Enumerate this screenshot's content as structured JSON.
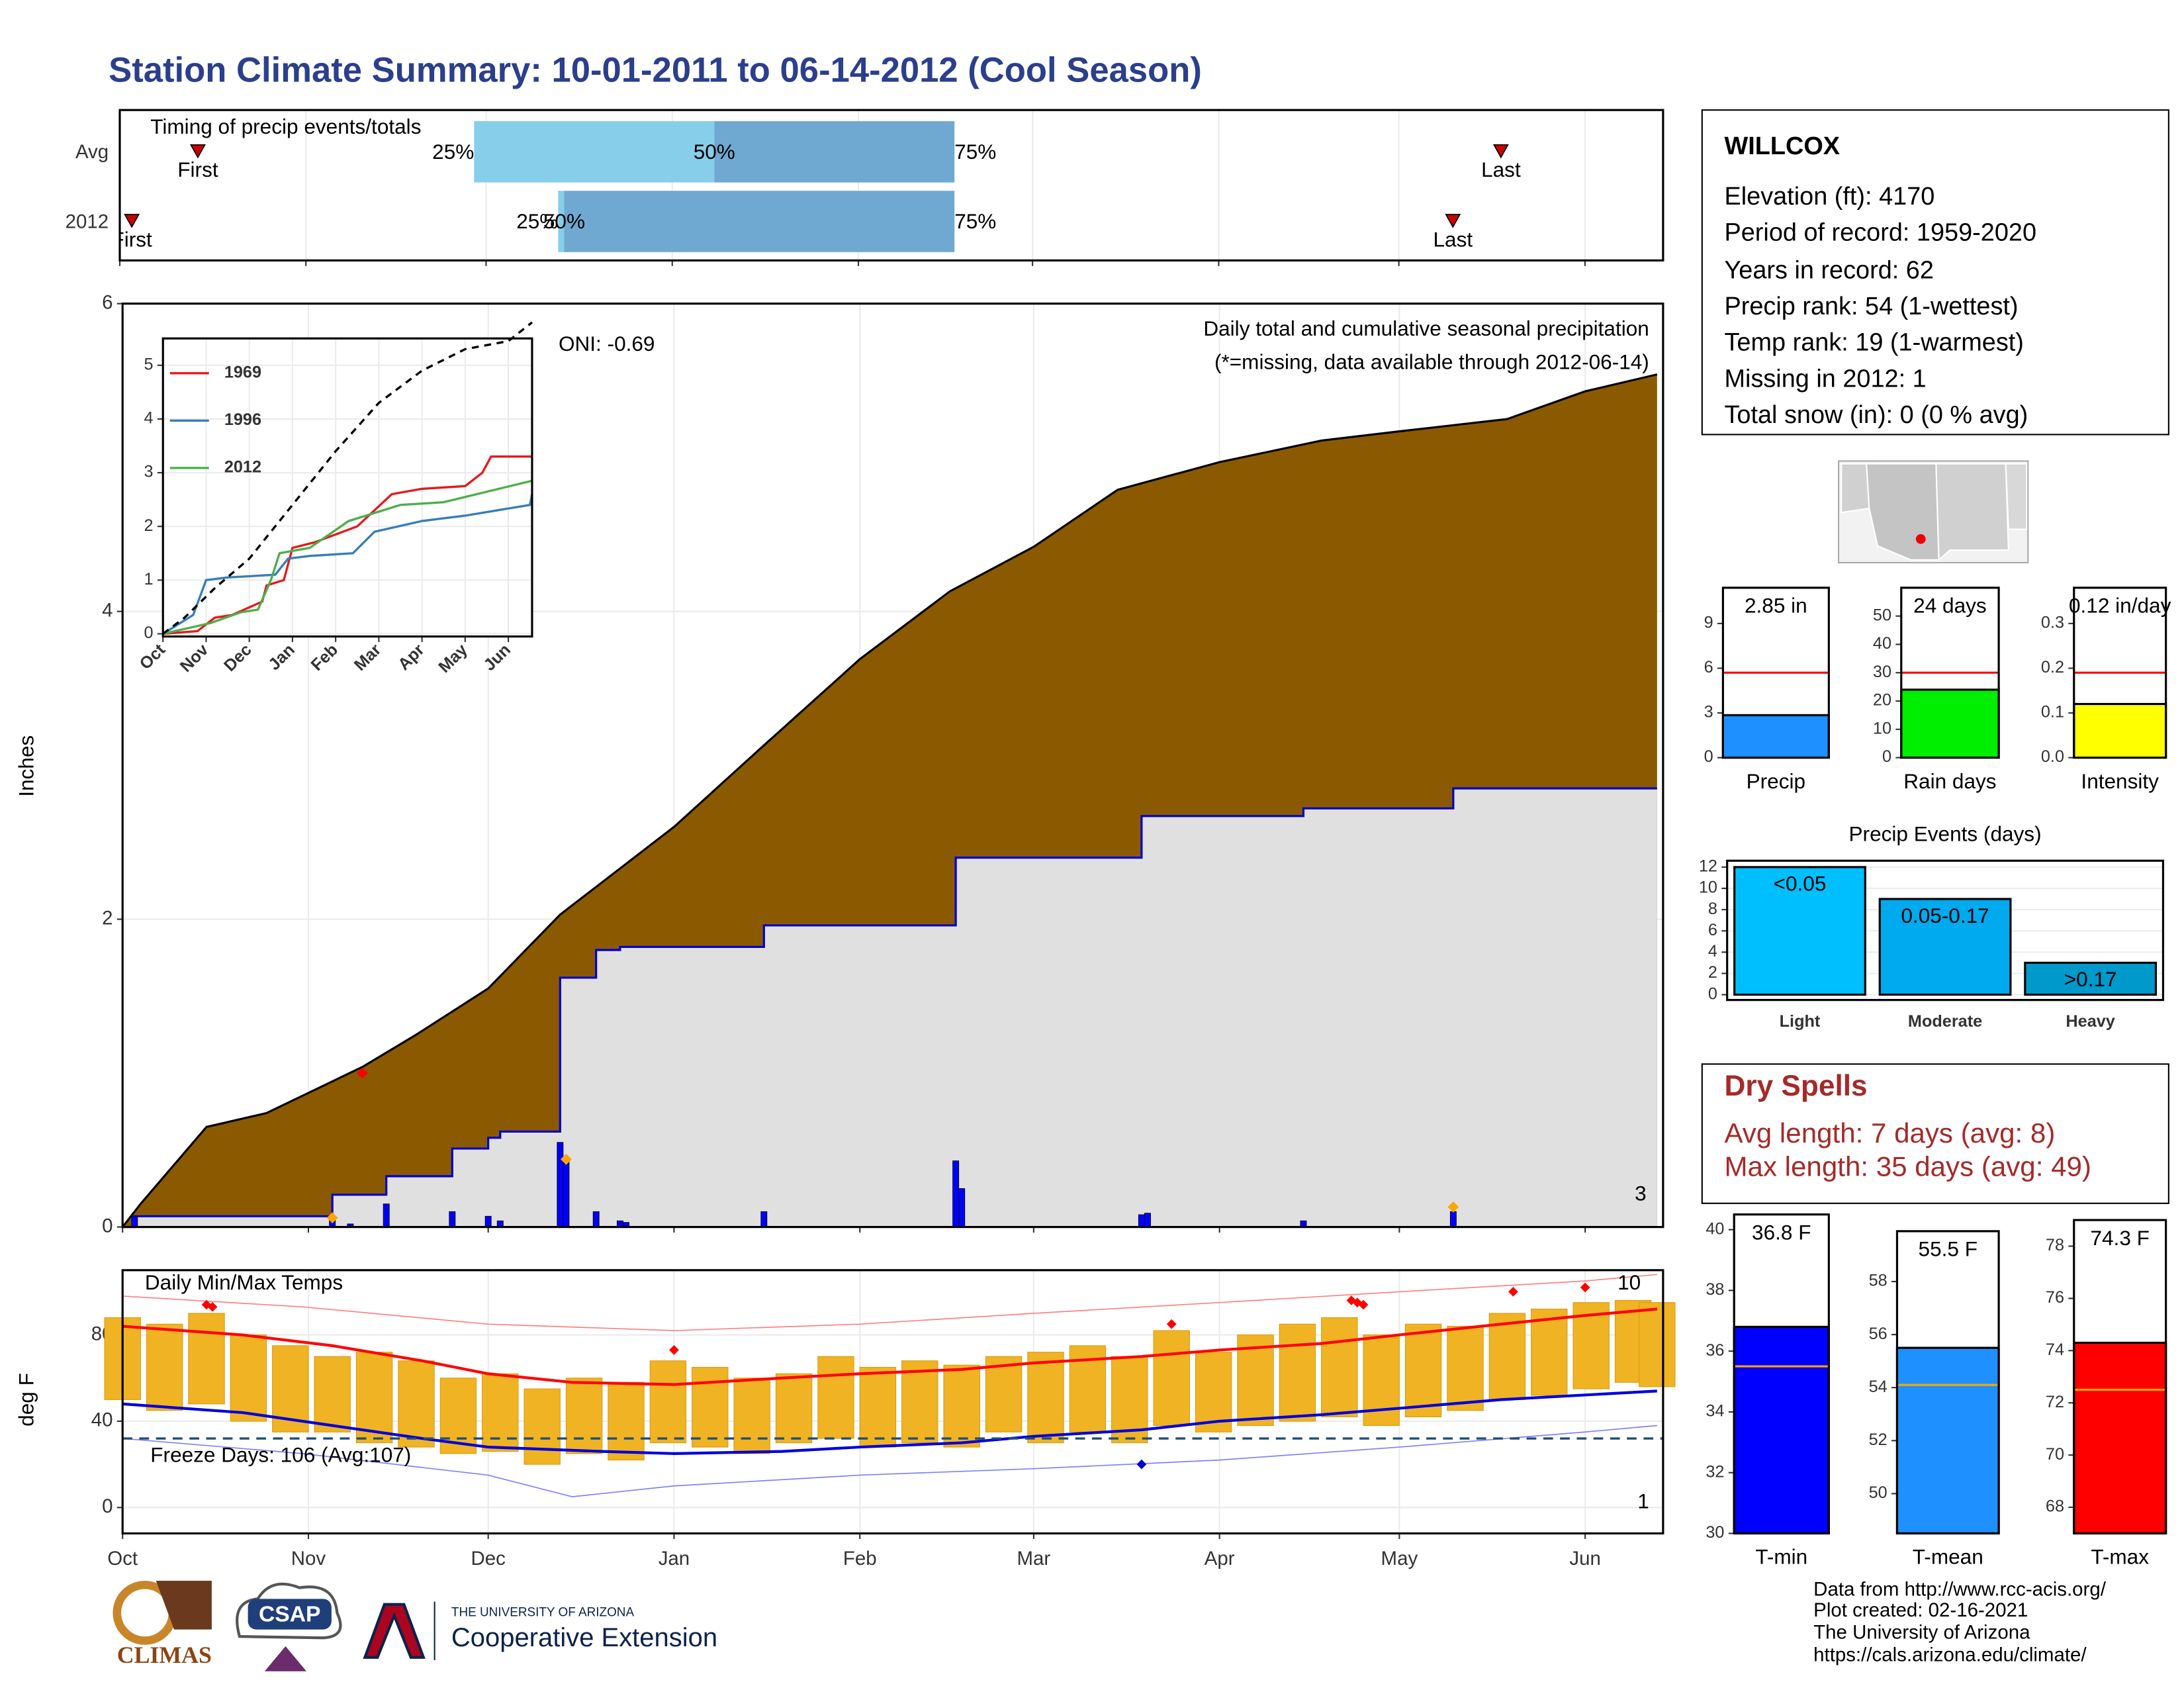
{
  "title": "Station Climate Summary: 10-01-2011 to 06-14-2012 (Cool Season)",
  "station": {
    "name": "WILLCOX",
    "lines": [
      "Elevation (ft): 4170",
      "Period of record: 1959-2020",
      "Years in record: 62",
      "Precip rank: 54 (1-wettest)",
      "Temp rank: 19 (1-warmest)",
      "Missing in 2012: 1",
      "Total snow (in): 0 (0 % avg)"
    ]
  },
  "dry_spells": {
    "title": "Dry Spells",
    "lines": [
      "Avg length: 7 days (avg: 8)",
      "Max length: 35 days (avg: 49)"
    ]
  },
  "footer": {
    "credits": [
      "Data from http://www.rcc-acis.org/",
      "Plot created: 02-16-2021",
      "The University of Arizona",
      "https://cals.arizona.edu/climate/"
    ],
    "logos": {
      "climas": "CLIMAS",
      "csap": "CSAP",
      "ua": "THE UNIVERSITY OF ARIZONA",
      "extension": "Cooperative Extension"
    }
  },
  "chart_data": [
    {
      "type": "timing",
      "title": "Timing of precip events/totals",
      "xlim": [
        0,
        257
      ],
      "xticks": [
        0,
        31,
        61,
        92,
        123,
        152,
        183,
        213,
        244
      ],
      "marker_labels": {
        "first": "First",
        "q25": "25%",
        "q50": "50%",
        "q75": "75%",
        "last": "Last"
      },
      "rows": [
        {
          "name": "Avg",
          "first": 13,
          "q25": 59,
          "q50": 99,
          "q75": 139,
          "last": 230
        },
        {
          "name": "2012",
          "first": 2,
          "q25": 73,
          "q50": 74,
          "q75": 139,
          "last": 222
        }
      ],
      "colors": [
        "#87ceeb",
        "#6fa8d0"
      ],
      "marker_color": "#cc0000"
    },
    {
      "type": "precip",
      "subtitle": "Daily total and cumulative seasonal precipitation",
      "note": "(*=missing, data available through 2012-06-14)",
      "oni": "ONI: -0.69",
      "corner_label": "3",
      "ylabel": "Inches",
      "xlim": [
        0,
        257
      ],
      "ylim": [
        0,
        6
      ],
      "yticks": [
        0,
        2,
        4,
        6
      ],
      "xticks": [
        0,
        31,
        61,
        92,
        123,
        152,
        183,
        213,
        244
      ],
      "grid": true,
      "series": [
        {
          "kind": "area",
          "fill": "#8b5a00",
          "color": "#000000",
          "x": [
            0,
            3,
            14,
            24,
            40,
            49,
            61,
            73,
            92,
            107,
            123,
            138,
            152,
            166,
            183,
            200,
            213,
            231,
            244,
            256
          ],
          "values": [
            0,
            0.15,
            0.65,
            0.74,
            1.04,
            1.25,
            1.55,
            2.03,
            2.6,
            3.13,
            3.69,
            4.13,
            4.42,
            4.79,
            4.97,
            5.11,
            5.17,
            5.25,
            5.43,
            5.54
          ]
        },
        {
          "kind": "area",
          "step": true,
          "fill": "#e0e0e0",
          "color": "#0000cc",
          "x": [
            0,
            2,
            35,
            44,
            55,
            61,
            63,
            73,
            79,
            83,
            107,
            139,
            170,
            197,
            222,
            256
          ],
          "values": [
            0,
            0.07,
            0.21,
            0.33,
            0.51,
            0.58,
            0.62,
            1.62,
            1.8,
            1.82,
            1.96,
            2.4,
            2.67,
            2.72,
            2.85,
            2.85
          ]
        },
        {
          "kind": "bar",
          "color": "#0000ff",
          "x": [
            2,
            35,
            38,
            44,
            55,
            61,
            63,
            73,
            74,
            79,
            83,
            84,
            107,
            139,
            140,
            170,
            171,
            197,
            222
          ],
          "values": [
            0.07,
            0.06,
            0.02,
            0.15,
            0.1,
            0.07,
            0.04,
            0.55,
            0.45,
            0.1,
            0.04,
            0.03,
            0.1,
            0.43,
            0.25,
            0.08,
            0.09,
            0.04,
            0.1
          ]
        },
        {
          "kind": "points",
          "color": "#ffa500",
          "x": [
            35,
            74,
            222
          ],
          "values": [
            0.06,
            0.44,
            0.13
          ]
        },
        {
          "kind": "points",
          "color": "#ff0000",
          "x": [
            40
          ],
          "values": [
            1.0
          ]
        }
      ]
    },
    {
      "type": "line",
      "xlim": [
        0,
        8.55
      ],
      "ylim": [
        -0.05,
        5.5
      ],
      "yticks": [
        0,
        1,
        2,
        3,
        4,
        5
      ],
      "xticks": [
        {
          "value": 0,
          "label": "Oct"
        },
        {
          "value": 1,
          "label": "Nov"
        },
        {
          "value": 2,
          "label": "Dec"
        },
        {
          "value": 3,
          "label": "Jan"
        },
        {
          "value": 4,
          "label": "Feb"
        },
        {
          "value": 5,
          "label": "Mar"
        },
        {
          "value": 6,
          "label": "Apr"
        },
        {
          "value": 7,
          "label": "May"
        },
        {
          "value": 8,
          "label": "Jun"
        }
      ],
      "legend": "top-left",
      "series": [
        {
          "name": "1969",
          "color": "#e41a1c",
          "x": [
            0,
            0.8,
            1.2,
            1.6,
            2.3,
            2.4,
            2.8,
            3.0,
            3.5,
            4.5,
            5.3,
            6.0,
            7.0,
            7.4,
            7.6,
            8.55
          ],
          "values": [
            0,
            0.05,
            0.3,
            0.35,
            0.6,
            0.9,
            1.0,
            1.6,
            1.7,
            2.0,
            2.6,
            2.7,
            2.75,
            3.0,
            3.3,
            3.3
          ]
        },
        {
          "name": "1996",
          "color": "#377eb8",
          "x": [
            0,
            0.7,
            1.0,
            1.5,
            2.6,
            2.9,
            3.4,
            4.4,
            4.9,
            6.0,
            7.0,
            8.5,
            8.55
          ],
          "values": [
            0,
            0.35,
            1.0,
            1.05,
            1.1,
            1.4,
            1.45,
            1.5,
            1.9,
            2.1,
            2.2,
            2.4,
            2.6
          ]
        },
        {
          "name": "2012",
          "color": "#4daf4a",
          "x": [
            0,
            1.1,
            1.8,
            2.2,
            2.5,
            2.7,
            3.4,
            4.3,
            5.5,
            6.5,
            8.55
          ],
          "values": [
            0,
            0.2,
            0.4,
            0.45,
            1.0,
            1.5,
            1.6,
            2.1,
            2.4,
            2.45,
            2.85
          ]
        },
        {
          "color": "#000000",
          "dash": true,
          "x": [
            0,
            0.5,
            1.2,
            2.0,
            3.0,
            4.0,
            5.0,
            6.0,
            7.0,
            8.0,
            8.55
          ],
          "values": [
            0,
            0.3,
            0.85,
            1.4,
            2.4,
            3.4,
            4.3,
            4.9,
            5.3,
            5.45,
            5.8
          ]
        }
      ]
    },
    {
      "type": "temps",
      "title": "Daily Min/Max Temps",
      "ylabel": "deg F",
      "xlim": [
        0,
        257
      ],
      "ylim": [
        -12,
        110
      ],
      "yticks": [
        0,
        40,
        80
      ],
      "xticks": [
        {
          "value": 0,
          "label": "Oct"
        },
        {
          "value": 31,
          "label": "Nov"
        },
        {
          "value": 61,
          "label": "Dec"
        },
        {
          "value": 92,
          "label": "Jan"
        },
        {
          "value": 123,
          "label": "Feb"
        },
        {
          "value": 152,
          "label": "Mar"
        },
        {
          "value": 183,
          "label": "Apr"
        },
        {
          "value": 213,
          "label": "May"
        },
        {
          "value": 244,
          "label": "Jun"
        }
      ],
      "freeze": {
        "value": 32,
        "label": "Freeze Days: 106 (Avg:107)",
        "color": "#1f4e79"
      },
      "corner_labels": [
        {
          "text": "10",
          "color": "#ff0000"
        },
        {
          "text": "1",
          "color": "#0000cc"
        }
      ],
      "series": [
        {
          "kind": "range",
          "color": "#f0b323",
          "x": [
            0,
            7,
            14,
            21,
            28,
            35,
            42,
            49,
            56,
            63,
            70,
            77,
            84,
            91,
            98,
            105,
            112,
            119,
            126,
            133,
            140,
            147,
            154,
            161,
            168,
            175,
            182,
            189,
            196,
            203,
            210,
            217,
            224,
            231,
            238,
            245,
            252,
            256
          ],
          "high": [
            88,
            85,
            90,
            80,
            75,
            70,
            72,
            68,
            60,
            62,
            55,
            60,
            58,
            68,
            65,
            60,
            62,
            70,
            65,
            68,
            66,
            70,
            72,
            75,
            70,
            82,
            72,
            80,
            85,
            88,
            80,
            85,
            84,
            90,
            92,
            95,
            96,
            95
          ],
          "low": [
            50,
            45,
            48,
            40,
            35,
            35,
            30,
            28,
            25,
            26,
            20,
            25,
            22,
            30,
            28,
            25,
            30,
            32,
            28,
            30,
            28,
            35,
            30,
            35,
            30,
            38,
            35,
            38,
            40,
            42,
            38,
            42,
            45,
            50,
            52,
            55,
            58,
            56
          ]
        },
        {
          "kind": "line",
          "color": "#ff8080",
          "width": 0.8,
          "x": [
            0,
            30,
            61,
            92,
            123,
            152,
            183,
            213,
            244,
            256
          ],
          "values": [
            98,
            93,
            85,
            82,
            85,
            90,
            95,
            100,
            105,
            108
          ]
        },
        {
          "kind": "line",
          "color": "#8080ff",
          "width": 0.8,
          "x": [
            0,
            30,
            61,
            75,
            92,
            123,
            152,
            183,
            213,
            244,
            256
          ],
          "values": [
            32,
            25,
            15,
            5,
            10,
            15,
            18,
            22,
            28,
            35,
            38
          ]
        },
        {
          "kind": "line",
          "color": "#ff0000",
          "width": 2,
          "x": [
            0,
            20,
            35,
            50,
            61,
            75,
            92,
            110,
            123,
            140,
            152,
            170,
            183,
            200,
            213,
            230,
            244,
            256
          ],
          "values": [
            84,
            80,
            75,
            68,
            62,
            58,
            57,
            60,
            62,
            64,
            67,
            70,
            73,
            76,
            80,
            85,
            89,
            92
          ]
        },
        {
          "kind": "line",
          "color": "#0000dd",
          "width": 2,
          "x": [
            0,
            20,
            35,
            50,
            61,
            80,
            92,
            110,
            123,
            140,
            152,
            170,
            183,
            200,
            213,
            230,
            256
          ],
          "values": [
            48,
            44,
            38,
            32,
            28,
            26,
            25,
            26,
            28,
            30,
            33,
            36,
            40,
            43,
            46,
            50,
            54
          ]
        },
        {
          "kind": "points",
          "color": "#ff0000",
          "x": [
            14,
            15,
            92,
            175,
            205,
            206,
            207,
            232,
            244
          ],
          "values": [
            94,
            93,
            73,
            85,
            96,
            95,
            94,
            100,
            102
          ]
        },
        {
          "kind": "points",
          "color": "#0000cc",
          "x": [
            170
          ],
          "values": [
            20
          ]
        }
      ]
    },
    {
      "type": "bar",
      "categories": [
        "Precip"
      ],
      "values": [
        2.85
      ],
      "value_labels": [
        "2.85 in"
      ],
      "color": "#1e90ff",
      "average": 5.7,
      "average_color": "#ff0000",
      "ylim": [
        0,
        11.4
      ],
      "yticks": [
        0,
        3,
        6,
        9
      ]
    },
    {
      "type": "bar",
      "categories": [
        "Rain days"
      ],
      "values": [
        24
      ],
      "value_labels": [
        "24 days"
      ],
      "color": "#00ee00",
      "average": 30,
      "average_color": "#ff0000",
      "ylim": [
        0,
        60
      ],
      "yticks": [
        0,
        10,
        20,
        30,
        40,
        50
      ]
    },
    {
      "type": "bar",
      "categories": [
        "Intensity"
      ],
      "values": [
        0.12
      ],
      "value_labels": [
        "0.12 in/day"
      ],
      "color": "#ffff00",
      "average": 0.19,
      "average_color": "#ff0000",
      "ylim": [
        0,
        0.38
      ],
      "yticks": [
        {
          "value": 0,
          "label": "0.0"
        },
        0.1,
        0.2,
        0.3
      ]
    },
    {
      "type": "events",
      "title": "Precip Events (days)",
      "categories": [
        "Light",
        "Moderate",
        "Heavy"
      ],
      "values": [
        12,
        9,
        3
      ],
      "bar_labels": [
        "<0.05",
        "0.05-0.17",
        ">0.17"
      ],
      "colors": [
        "#00bfff",
        "#00aaee",
        "#0099cc"
      ],
      "ylim": [
        -0.5,
        12.6
      ],
      "yticks": [
        0,
        2,
        4,
        6,
        8,
        10,
        12
      ],
      "grid": true
    },
    {
      "type": "bar",
      "categories": [
        "T-min"
      ],
      "values": [
        36.8
      ],
      "value_labels": [
        "36.8 F"
      ],
      "color": "#0000ff",
      "average": 35.5,
      "average_color": "#ffa500",
      "ylim": [
        30,
        40.5
      ],
      "yticks": [
        30,
        32,
        34,
        36,
        38,
        40
      ]
    },
    {
      "type": "bar",
      "categories": [
        "T-mean"
      ],
      "values": [
        55.5
      ],
      "value_labels": [
        "55.5 F"
      ],
      "color": "#1e90ff",
      "average": 54.1,
      "average_color": "#ffa500",
      "ylim": [
        48.5,
        59.9
      ],
      "yticks": [
        50,
        52,
        54,
        56,
        58
      ]
    },
    {
      "type": "bar",
      "categories": [
        "T-max"
      ],
      "values": [
        74.3
      ],
      "value_labels": [
        "74.3 F"
      ],
      "color": "#ff0000",
      "average": 72.5,
      "average_color": "#ffa500",
      "ylim": [
        67,
        79
      ],
      "yticks": [
        68,
        70,
        72,
        74,
        76,
        78
      ]
    }
  ]
}
